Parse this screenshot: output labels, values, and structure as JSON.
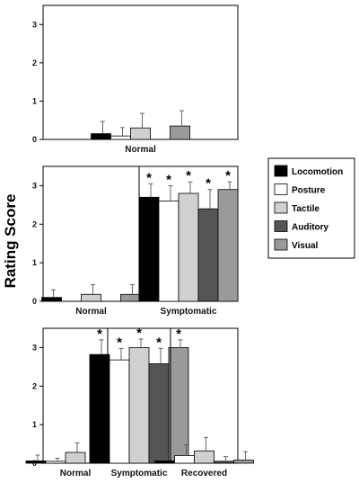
{
  "ylabel": "Rating Score",
  "legend": [
    {
      "name": "Locomotion",
      "color": "#000000"
    },
    {
      "name": "Posture",
      "color": "#ffffff"
    },
    {
      "name": "Tactile",
      "color": "#d0d0d0"
    },
    {
      "name": "Auditory",
      "color": "#555555"
    },
    {
      "name": "Visual",
      "color": "#9a9a9a"
    }
  ],
  "chart_data": [
    {
      "type": "bar",
      "ylim": [
        0,
        3.5
      ],
      "yticks": [
        "0",
        "1",
        "2",
        "3"
      ],
      "groups": [
        {
          "label": "Normal",
          "values": [
            0.15,
            0.09,
            0.3,
            null,
            0.35
          ],
          "errors": [
            0.32,
            0.22,
            0.38,
            null,
            0.4
          ],
          "significant": [
            false,
            false,
            false,
            false,
            false
          ]
        }
      ]
    },
    {
      "type": "bar",
      "ylim": [
        0,
        3.5
      ],
      "yticks": [
        "0",
        "1",
        "2",
        "3"
      ],
      "groups": [
        {
          "label": "Normal",
          "values": [
            0.1,
            null,
            0.18,
            null,
            0.18
          ],
          "errors": [
            0.2,
            null,
            0.25,
            null,
            0.25
          ],
          "significant": [
            false,
            false,
            false,
            false,
            false
          ]
        },
        {
          "label": "Symptomatic",
          "values": [
            2.7,
            2.6,
            2.8,
            2.4,
            2.9
          ],
          "errors": [
            0.35,
            0.4,
            0.3,
            0.5,
            0.2
          ],
          "significant": [
            true,
            true,
            true,
            true,
            true
          ]
        }
      ]
    },
    {
      "type": "bar",
      "ylim": [
        0,
        3.5
      ],
      "yticks": [
        "0",
        "1",
        "2",
        "3"
      ],
      "groups": [
        {
          "label": "Normal",
          "values": [
            0.06,
            0.05,
            0.28,
            null,
            0.32
          ],
          "errors": [
            0.15,
            0.08,
            0.25,
            null,
            0.33
          ],
          "significant": [
            false,
            false,
            false,
            false,
            false
          ]
        },
        {
          "label": "Symptomatic",
          "values": [
            2.82,
            2.68,
            3.0,
            2.58,
            3.0
          ],
          "errors": [
            0.38,
            0.3,
            0.22,
            0.4,
            0.2
          ],
          "significant": [
            true,
            true,
            true,
            true,
            true
          ]
        },
        {
          "label": "Recovered",
          "values": [
            0.06,
            0.2,
            0.32,
            0.05,
            0.08
          ],
          "errors": [
            0.15,
            0.28,
            0.35,
            0.12,
            0.22
          ],
          "significant": [
            false,
            false,
            false,
            false,
            false
          ]
        }
      ]
    }
  ]
}
